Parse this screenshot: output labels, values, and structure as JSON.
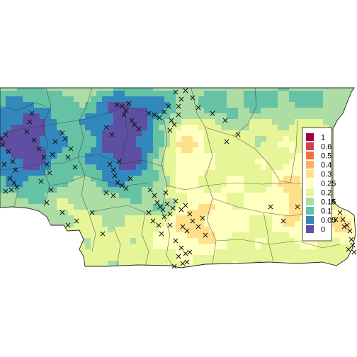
{
  "chart_data": {
    "type": "heatmap",
    "title": "",
    "xlabel": "",
    "ylabel": "",
    "legend": {
      "placement": "right",
      "breaks": [
        "1",
        "0.6",
        "0.5",
        "0.4",
        "0.3",
        "0.25",
        "0.2",
        "0.15",
        "0.1",
        "0.05",
        "0"
      ],
      "colors": [
        "#9E0142",
        "#D53E4F",
        "#F46D43",
        "#FDAE61",
        "#FEE08B",
        "#FFFFBF",
        "#E6F598",
        "#ABDDA4",
        "#66C2A5",
        "#3288BD",
        "#5E4FA2"
      ]
    },
    "value_range": [
      0,
      1
    ],
    "occurrence_marker": "×",
    "occurrence_marker_label": "x"
  },
  "colors": {
    "background": "#FFFFFF",
    "boundary": "#333333",
    "marker": "#111111"
  }
}
